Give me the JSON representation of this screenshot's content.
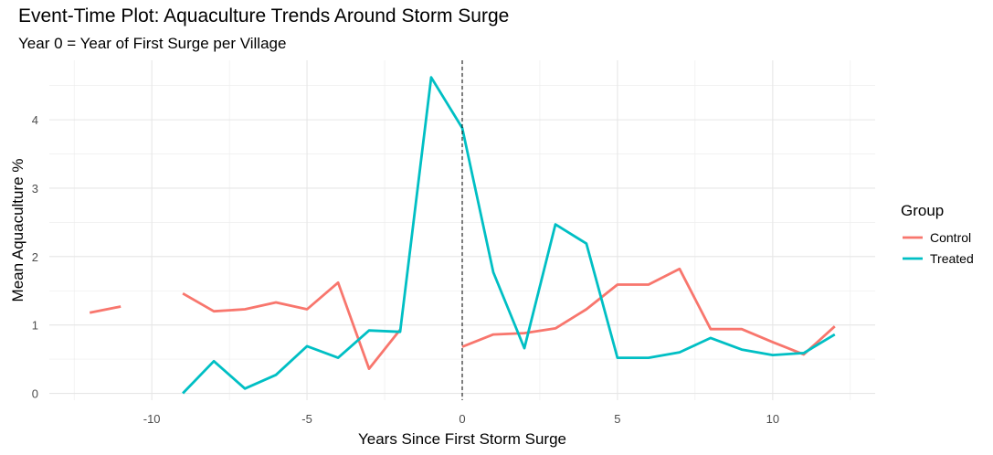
{
  "chart_data": {
    "type": "line",
    "title": "Event-Time Plot: Aquaculture Trends Around Storm Surge",
    "subtitle": "Year 0 = Year of First Surge per Village",
    "xlabel": "Years Since First Storm Surge",
    "ylabel": "Mean Aquaculture %",
    "xlim": [
      -13.3,
      13.3
    ],
    "ylim": [
      -0.1,
      4.87
    ],
    "x_ticks": [
      -10,
      -5,
      0,
      5,
      10
    ],
    "y_ticks": [
      0,
      1,
      2,
      3,
      4
    ],
    "grid": true,
    "vline": {
      "x": 0,
      "style": "dashed"
    },
    "legend": {
      "title": "Group",
      "position": "right"
    },
    "series": [
      {
        "name": "Control",
        "color": "#F8766D",
        "x": [
          -12,
          -11,
          -10,
          -9,
          -8,
          -7,
          -6,
          -5,
          -4,
          -3,
          -2,
          -1,
          0,
          1,
          2,
          3,
          4,
          5,
          6,
          7,
          8,
          9,
          10,
          11,
          12
        ],
        "values": [
          1.18,
          1.27,
          null,
          1.46,
          1.2,
          1.23,
          1.33,
          1.23,
          1.62,
          0.36,
          0.93,
          null,
          0.68,
          0.86,
          0.88,
          0.95,
          1.23,
          1.59,
          1.59,
          1.82,
          0.94,
          0.94,
          0.75,
          0.57,
          0.98
        ]
      },
      {
        "name": "Treated",
        "color": "#00BFC4",
        "x": [
          -9,
          -8,
          -7,
          -6,
          -5,
          -4,
          -3,
          -2,
          -1,
          0,
          1,
          2,
          3,
          4,
          5,
          6,
          7,
          8,
          9,
          10,
          11,
          12
        ],
        "values": [
          0.0,
          0.47,
          0.07,
          0.27,
          0.69,
          0.52,
          0.92,
          0.9,
          4.62,
          3.88,
          1.77,
          0.66,
          2.47,
          2.19,
          0.52,
          0.52,
          0.6,
          0.81,
          0.64,
          0.56,
          0.59,
          0.86
        ]
      }
    ]
  }
}
